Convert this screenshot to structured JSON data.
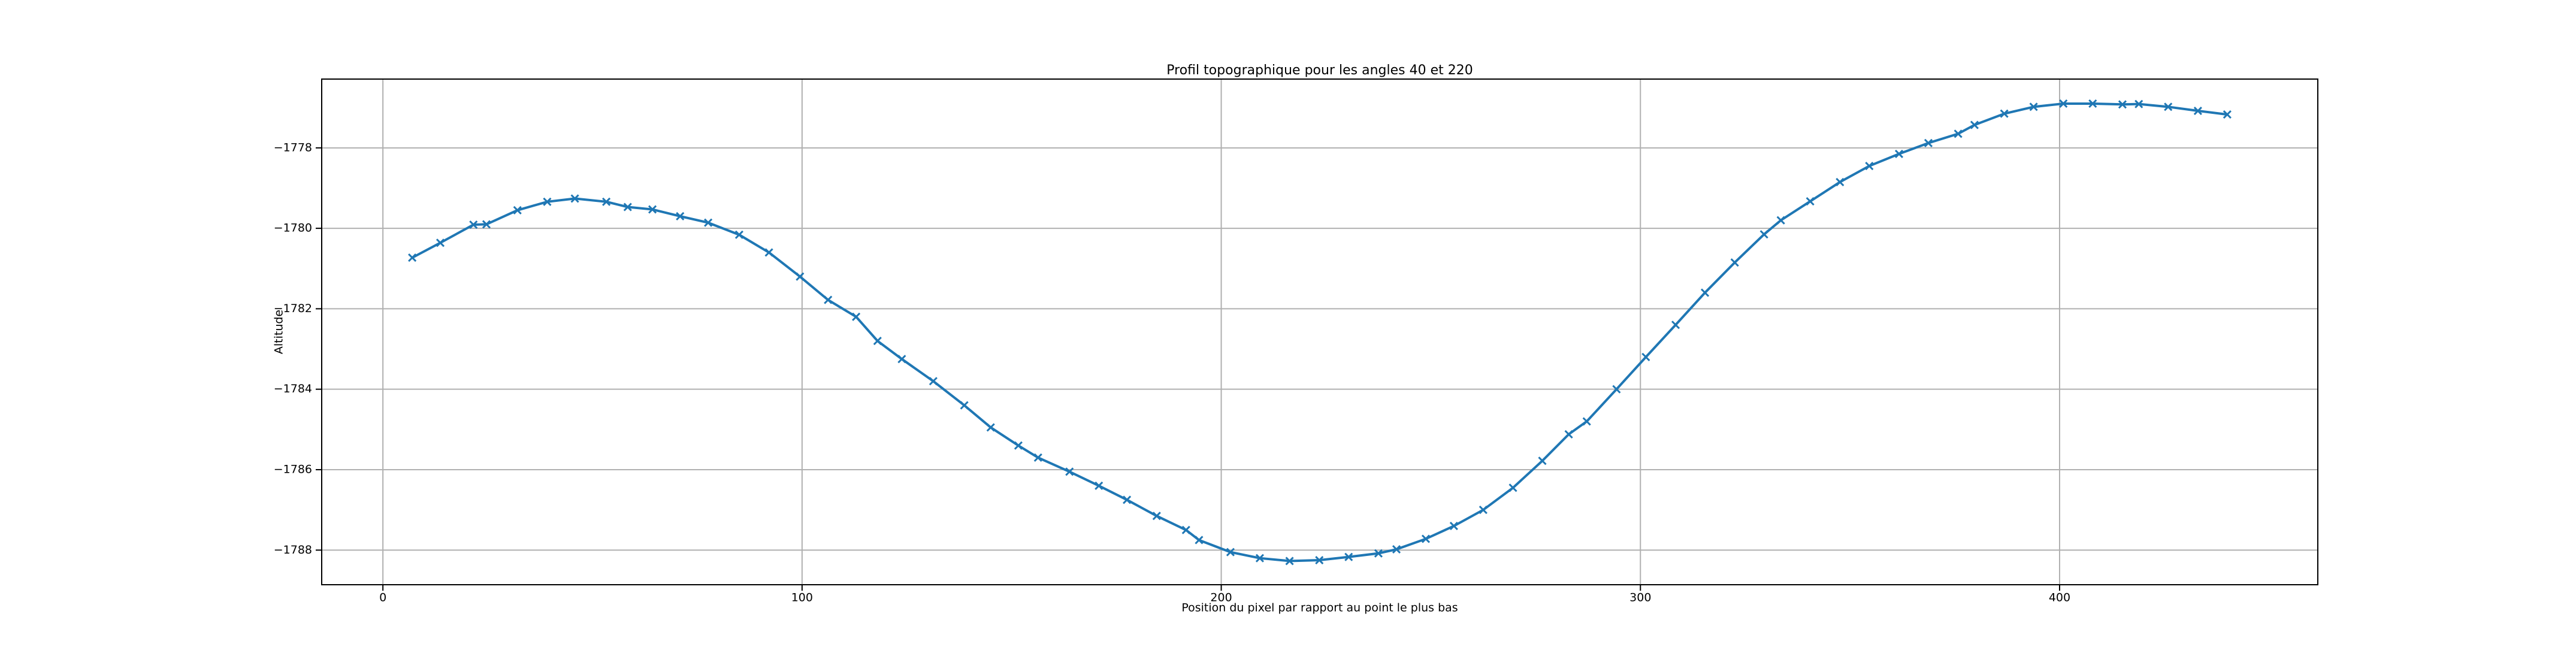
{
  "chart_data": {
    "type": "line",
    "title": "Profil topographique pour les angles 40 et 220",
    "x_label": "Position du pixel par rapport au point le plus bas",
    "y_label": "Altitude",
    "color": "#1f77b4",
    "marker": "x",
    "grid": true,
    "x": [
      7,
      13.7,
      21.6,
      24.7,
      32.1,
      39.2,
      45.8,
      53.3,
      58.4,
      64.3,
      70.9,
      77.6,
      85,
      92.1,
      99.5,
      106.2,
      112.9,
      118,
      123.8,
      131.3,
      138.7,
      145,
      151.6,
      156.3,
      163.8,
      170.8,
      177.5,
      184.6,
      191.6,
      194.7,
      202.2,
      209.2,
      216.3,
      223.4,
      230.4,
      237.5,
      241.8,
      248.8,
      255.5,
      262.5,
      269.6,
      276.6,
      282.9,
      287.2,
      294.3,
      301.3,
      308.4,
      315.4,
      322.5,
      329.5,
      333.5,
      340.5,
      347.6,
      354.6,
      361.7,
      368.7,
      375.8,
      379.7,
      386.8,
      393.8,
      400.9,
      407.9,
      415,
      418.9,
      425.9,
      433,
      440
    ],
    "values": [
      -1780.73,
      -1780.36,
      -1779.91,
      -1779.9,
      -1779.55,
      -1779.34,
      -1779.26,
      -1779.34,
      -1779.47,
      -1779.53,
      -1779.7,
      -1779.86,
      -1780.16,
      -1780.6,
      -1781.2,
      -1781.78,
      -1782.2,
      -1782.8,
      -1783.25,
      -1783.8,
      -1784.4,
      -1784.95,
      -1785.4,
      -1785.7,
      -1786.05,
      -1786.4,
      -1786.75,
      -1787.15,
      -1787.5,
      -1787.75,
      -1788.05,
      -1788.2,
      -1788.27,
      -1788.25,
      -1788.17,
      -1788.08,
      -1787.98,
      -1787.72,
      -1787.4,
      -1787.0,
      -1786.45,
      -1785.78,
      -1785.12,
      -1784.8,
      -1784.0,
      -1783.2,
      -1782.4,
      -1781.6,
      -1780.85,
      -1780.15,
      -1779.8,
      -1779.33,
      -1778.85,
      -1778.45,
      -1778.15,
      -1777.88,
      -1777.65,
      -1777.43,
      -1777.15,
      -1776.98,
      -1776.9,
      -1776.9,
      -1776.92,
      -1776.91,
      -1776.98,
      -1777.08,
      -1777.17
    ],
    "xlim": [
      -14.6,
      461.6
    ],
    "xticks": [
      0,
      100,
      200,
      300,
      400
    ],
    "ylim": [
      -1788.86,
      -1776.29
    ],
    "yticks": [
      {
        "value": -1788,
        "label": "−1788"
      },
      {
        "value": -1786,
        "label": "−1786"
      },
      {
        "value": -1784,
        "label": "−1784"
      },
      {
        "value": -1782,
        "label": "−1782"
      },
      {
        "value": -1780,
        "label": "−1780"
      },
      {
        "value": -1778,
        "label": "−1778"
      }
    ]
  }
}
